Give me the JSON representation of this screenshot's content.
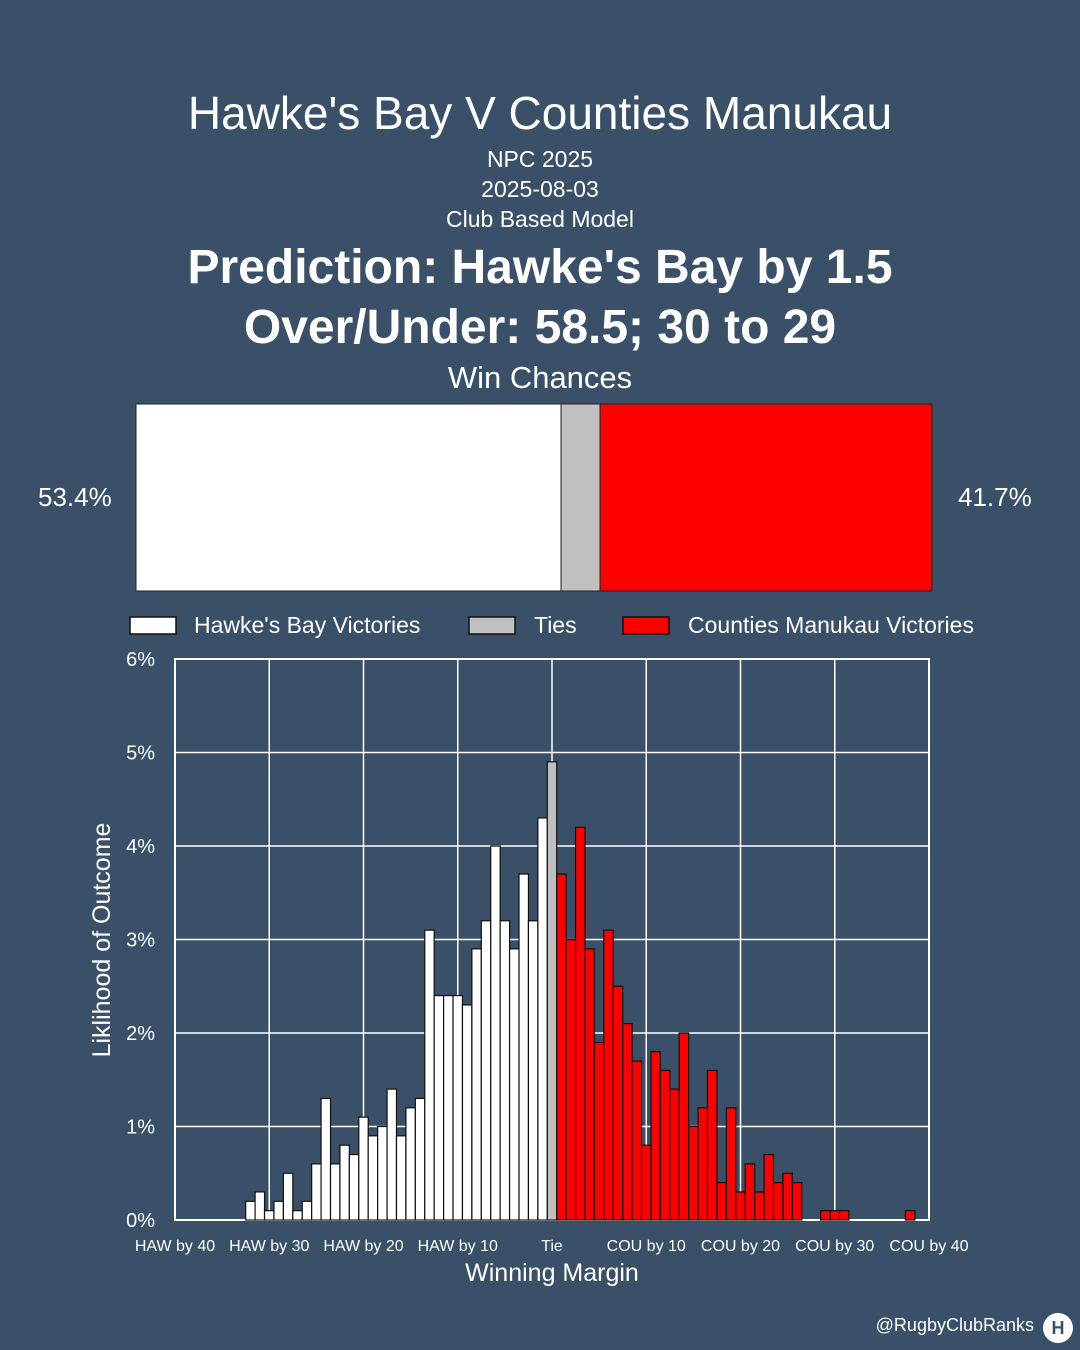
{
  "header": {
    "title": "Hawke's Bay V Counties Manukau",
    "competition": "NPC 2025",
    "date": "2025-08-03",
    "model": "Club Based Model",
    "prediction": "Prediction: Hawke's Bay by 1.5",
    "over_under": "Over/Under: 58.5; 30 to 29",
    "win_chances_label": "Win Chances"
  },
  "win_chances": {
    "home_label": "53.4%",
    "away_label": "41.7%",
    "home": 53.4,
    "tie": 4.9,
    "away": 41.7
  },
  "colors": {
    "background": "#3a5068",
    "home": "#ffffff",
    "tie": "#c0c0c0",
    "away": "#ff0000"
  },
  "legend": {
    "home": "Hawke's Bay Victories",
    "tie": "Ties",
    "away": "Counties Manukau Victories"
  },
  "chart_data": {
    "type": "bar",
    "xlabel": "Winning Margin",
    "ylabel": "Liklihood of Outcome",
    "x_range": [
      -40,
      40
    ],
    "ylim": [
      0,
      6
    ],
    "grid": true,
    "x_ticks": [
      {
        "value": -40,
        "label": "HAW by 40"
      },
      {
        "value": -30,
        "label": "HAW by 30"
      },
      {
        "value": -20,
        "label": "HAW by 20"
      },
      {
        "value": -10,
        "label": "HAW by 10"
      },
      {
        "value": 0,
        "label": "Tie"
      },
      {
        "value": 10,
        "label": "COU by 10"
      },
      {
        "value": 20,
        "label": "COU by 20"
      },
      {
        "value": 30,
        "label": "COU by 30"
      },
      {
        "value": 40,
        "label": "COU by 40"
      }
    ],
    "y_ticks": [
      "0%",
      "1%",
      "2%",
      "3%",
      "4%",
      "5%",
      "6%"
    ],
    "series": [
      {
        "name": "Hawke's Bay Victories",
        "color": "#ffffff",
        "x": [
          -32,
          -31,
          -30,
          -29,
          -28,
          -27,
          -26,
          -25,
          -24,
          -23,
          -22,
          -21,
          -20,
          -19,
          -18,
          -17,
          -16,
          -15,
          -14,
          -13,
          -12,
          -11,
          -10,
          -9,
          -8,
          -7,
          -6,
          -5,
          -4,
          -3,
          -2,
          -1
        ],
        "values": [
          0.2,
          0.3,
          0.1,
          0.2,
          0.5,
          0.1,
          0.2,
          0.6,
          1.3,
          0.6,
          0.8,
          0.7,
          1.1,
          0.9,
          1.0,
          1.4,
          0.9,
          1.2,
          1.3,
          3.1,
          2.4,
          2.4,
          2.4,
          2.3,
          2.9,
          3.2,
          4.0,
          3.2,
          2.9,
          3.7,
          3.2,
          4.3
        ]
      },
      {
        "name": "Ties",
        "color": "#c0c0c0",
        "x": [
          0
        ],
        "values": [
          4.9
        ]
      },
      {
        "name": "Counties Manukau Victories",
        "color": "#ff0000",
        "x": [
          1,
          2,
          3,
          4,
          5,
          6,
          7,
          8,
          9,
          10,
          11,
          12,
          13,
          14,
          15,
          16,
          17,
          18,
          19,
          20,
          21,
          22,
          23,
          24,
          25,
          26,
          27,
          28,
          29,
          30,
          31,
          32,
          33,
          34,
          35,
          36,
          37,
          38
        ],
        "values": [
          3.7,
          3.0,
          4.2,
          2.9,
          1.9,
          3.1,
          2.5,
          2.1,
          1.7,
          0.8,
          1.8,
          1.6,
          1.4,
          2.0,
          1.0,
          1.2,
          1.6,
          0.4,
          1.2,
          0.3,
          0.6,
          0.3,
          0.7,
          0.4,
          0.5,
          0.4,
          0,
          0,
          0.1,
          0.1,
          0.1,
          0,
          0,
          0,
          0,
          0,
          0,
          0.1
        ]
      }
    ]
  },
  "footer": {
    "credit": "@RugbyClubRanks",
    "logo_glyph": "H"
  }
}
